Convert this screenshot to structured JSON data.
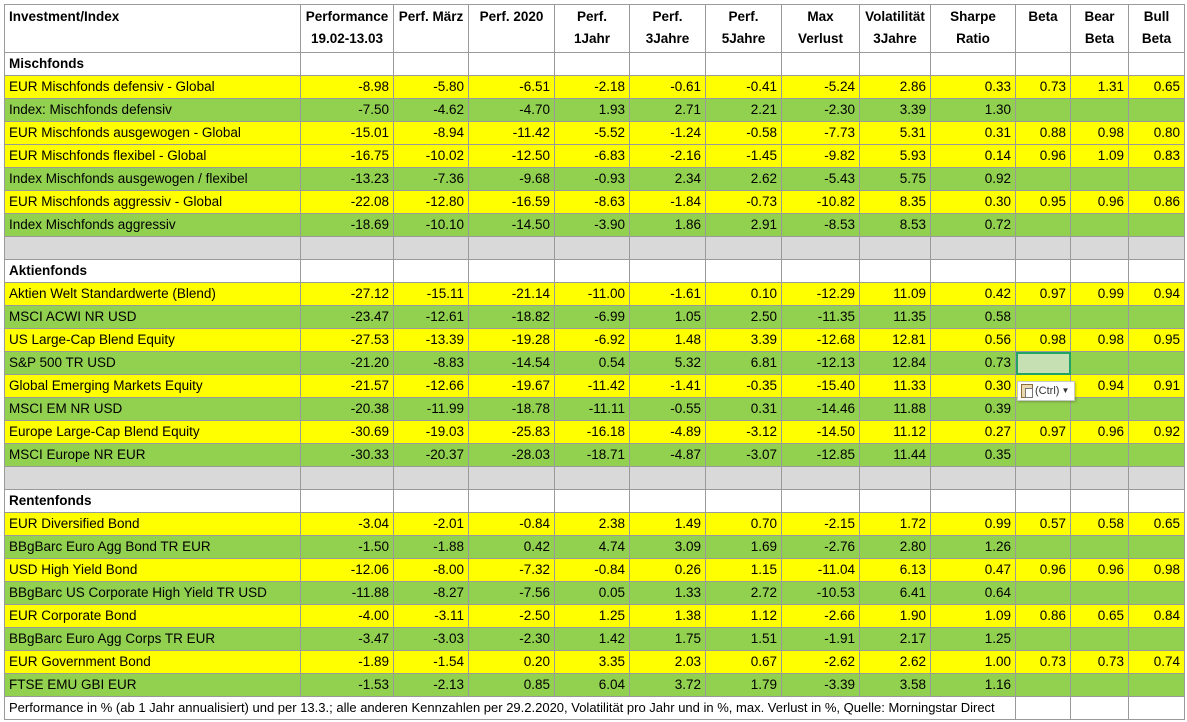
{
  "header": {
    "name": "Investment/Index",
    "cols": [
      [
        "Performance",
        "19.02-13.03"
      ],
      [
        "Perf. März",
        ""
      ],
      [
        "Perf. 2020",
        ""
      ],
      [
        "Perf.",
        "1Jahr"
      ],
      [
        "Perf.",
        "3Jahre"
      ],
      [
        "Perf.",
        "5Jahre"
      ],
      [
        "Max",
        "Verlust"
      ],
      [
        "Volatilität",
        "3Jahre"
      ],
      [
        "Sharpe",
        "Ratio"
      ],
      [
        "Beta",
        ""
      ],
      [
        "Bear",
        "Beta"
      ],
      [
        "Bull",
        "Beta"
      ]
    ]
  },
  "sections": [
    {
      "title": "Mischfonds",
      "rows": [
        {
          "type": "fund",
          "name": "EUR Mischfonds defensiv - Global",
          "values": [
            "-8.98",
            "-5.80",
            "-6.51",
            "-2.18",
            "-0.61",
            "-0.41",
            "-5.24",
            "2.86",
            "0.33",
            "0.73",
            "1.31",
            "0.65"
          ]
        },
        {
          "type": "index",
          "name": "Index: Mischfonds defensiv",
          "values": [
            "-7.50",
            "-4.62",
            "-4.70",
            "1.93",
            "2.71",
            "2.21",
            "-2.30",
            "3.39",
            "1.30",
            "",
            "",
            ""
          ]
        },
        {
          "type": "fund",
          "name": "EUR Mischfonds ausgewogen - Global",
          "values": [
            "-15.01",
            "-8.94",
            "-11.42",
            "-5.52",
            "-1.24",
            "-0.58",
            "-7.73",
            "5.31",
            "0.31",
            "0.88",
            "0.98",
            "0.80"
          ]
        },
        {
          "type": "fund",
          "name": "EUR Mischfonds flexibel - Global",
          "values": [
            "-16.75",
            "-10.02",
            "-12.50",
            "-6.83",
            "-2.16",
            "-1.45",
            "-9.82",
            "5.93",
            "0.14",
            "0.96",
            "1.09",
            "0.83"
          ]
        },
        {
          "type": "index",
          "name": "Index Mischfonds ausgewogen / flexibel",
          "values": [
            "-13.23",
            "-7.36",
            "-9.68",
            "-0.93",
            "2.34",
            "2.62",
            "-5.43",
            "5.75",
            "0.92",
            "",
            "",
            ""
          ]
        },
        {
          "type": "fund",
          "name": "EUR Mischfonds aggressiv - Global",
          "values": [
            "-22.08",
            "-12.80",
            "-16.59",
            "-8.63",
            "-1.84",
            "-0.73",
            "-10.82",
            "8.35",
            "0.30",
            "0.95",
            "0.96",
            "0.86"
          ]
        },
        {
          "type": "index",
          "name": "Index Mischfonds aggressiv",
          "values": [
            "-18.69",
            "-10.10",
            "-14.50",
            "-3.90",
            "1.86",
            "2.91",
            "-8.53",
            "8.53",
            "0.72",
            "",
            "",
            ""
          ]
        }
      ]
    },
    {
      "title": "Aktienfonds",
      "rows": [
        {
          "type": "fund",
          "name": "Aktien Welt Standardwerte (Blend)",
          "values": [
            "-27.12",
            "-15.11",
            "-21.14",
            "-11.00",
            "-1.61",
            "0.10",
            "-12.29",
            "11.09",
            "0.42",
            "0.97",
            "0.99",
            "0.94"
          ]
        },
        {
          "type": "index",
          "name": "MSCI ACWI NR USD",
          "values": [
            "-23.47",
            "-12.61",
            "-18.82",
            "-6.99",
            "1.05",
            "2.50",
            "-11.35",
            "11.35",
            "0.58",
            "",
            "",
            ""
          ]
        },
        {
          "type": "fund",
          "name": "US Large-Cap Blend Equity",
          "values": [
            "-27.53",
            "-13.39",
            "-19.28",
            "-6.92",
            "1.48",
            "3.39",
            "-12.68",
            "12.81",
            "0.56",
            "0.98",
            "0.98",
            "0.95"
          ]
        },
        {
          "type": "index",
          "name": "S&P 500 TR USD",
          "values": [
            "-21.20",
            "-8.83",
            "-14.54",
            "0.54",
            "5.32",
            "6.81",
            "-12.13",
            "12.84",
            "0.73",
            "",
            "",
            ""
          ]
        },
        {
          "type": "fund",
          "name": "Global Emerging Markets Equity",
          "values": [
            "-21.57",
            "-12.66",
            "-19.67",
            "-11.42",
            "-1.41",
            "-0.35",
            "-15.40",
            "11.33",
            "0.30",
            "",
            "0.94",
            "0.91"
          ]
        },
        {
          "type": "index",
          "name": "MSCI EM NR USD",
          "values": [
            "-20.38",
            "-11.99",
            "-18.78",
            "-11.11",
            "-0.55",
            "0.31",
            "-14.46",
            "11.88",
            "0.39",
            "",
            "",
            ""
          ]
        },
        {
          "type": "fund",
          "name": "Europe Large-Cap Blend Equity",
          "values": [
            "-30.69",
            "-19.03",
            "-25.83",
            "-16.18",
            "-4.89",
            "-3.12",
            "-14.50",
            "11.12",
            "0.27",
            "0.97",
            "0.96",
            "0.92"
          ]
        },
        {
          "type": "index",
          "name": "MSCI Europe NR EUR",
          "values": [
            "-30.33",
            "-20.37",
            "-28.03",
            "-18.71",
            "-4.87",
            "-3.07",
            "-12.85",
            "11.44",
            "0.35",
            "",
            "",
            ""
          ]
        }
      ]
    },
    {
      "title": "Rentenfonds",
      "rows": [
        {
          "type": "fund",
          "name": "EUR Diversified Bond",
          "values": [
            "-3.04",
            "-2.01",
            "-0.84",
            "2.38",
            "1.49",
            "0.70",
            "-2.15",
            "1.72",
            "0.99",
            "0.57",
            "0.58",
            "0.65"
          ]
        },
        {
          "type": "index",
          "name": "BBgBarc Euro Agg Bond TR EUR",
          "values": [
            "-1.50",
            "-1.88",
            "0.42",
            "4.74",
            "3.09",
            "1.69",
            "-2.76",
            "2.80",
            "1.26",
            "",
            "",
            ""
          ]
        },
        {
          "type": "fund",
          "name": "USD High Yield Bond",
          "values": [
            "-12.06",
            "-8.00",
            "-7.32",
            "-0.84",
            "0.26",
            "1.15",
            "-11.04",
            "6.13",
            "0.47",
            "0.96",
            "0.96",
            "0.98"
          ]
        },
        {
          "type": "index",
          "name": "BBgBarc US Corporate High Yield TR USD",
          "values": [
            "-11.88",
            "-8.27",
            "-7.56",
            "0.05",
            "1.33",
            "2.72",
            "-10.53",
            "6.41",
            "0.64",
            "",
            "",
            ""
          ]
        },
        {
          "type": "fund",
          "name": "EUR Corporate Bond",
          "values": [
            "-4.00",
            "-3.11",
            "-2.50",
            "1.25",
            "1.38",
            "1.12",
            "-2.66",
            "1.90",
            "1.09",
            "0.86",
            "0.65",
            "0.84"
          ]
        },
        {
          "type": "index",
          "name": "BBgBarc Euro Agg Corps TR EUR",
          "values": [
            "-3.47",
            "-3.03",
            "-2.30",
            "1.42",
            "1.75",
            "1.51",
            "-1.91",
            "2.17",
            "1.25",
            "",
            "",
            ""
          ]
        },
        {
          "type": "fund",
          "name": "EUR Government Bond",
          "values": [
            "-1.89",
            "-1.54",
            "0.20",
            "3.35",
            "2.03",
            "0.67",
            "-2.62",
            "2.62",
            "1.00",
            "0.73",
            "0.73",
            "0.74"
          ]
        },
        {
          "type": "index",
          "name": "FTSE EMU GBI EUR",
          "values": [
            "-1.53",
            "-2.13",
            "0.85",
            "6.04",
            "3.72",
            "1.79",
            "-3.39",
            "3.58",
            "1.16",
            "",
            "",
            ""
          ]
        }
      ]
    }
  ],
  "footer": "Performance in % (ab 1 Jahr annualisiert) und per 13.3.; alle anderen Kennzahlen per 29.2.2020, Volatilität pro Jahr und in %, max. Verlust in %, Quelle: Morningstar Direct",
  "paste_options": {
    "label": "(Ctrl)",
    "icon": "clipboard-icon",
    "dropdown_icon": "chevron-down-icon"
  },
  "selected_cell": {
    "row_name": "S&P 500 TR USD",
    "column": "Beta"
  },
  "colors": {
    "fund_row": "#ffff00",
    "index_row": "#92d050",
    "spacer_row": "#d9d9d9",
    "selection": "#21a366"
  }
}
